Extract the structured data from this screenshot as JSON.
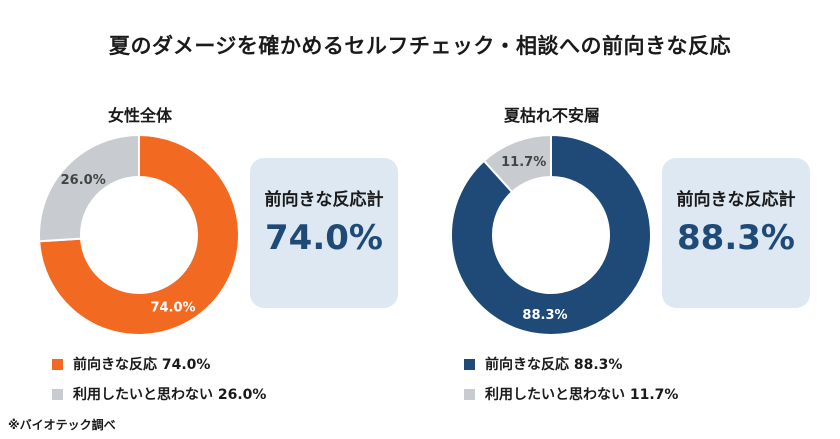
{
  "title": "夏のダメージを確かめるセルフチェック・相談への前向きな反応",
  "footnote": "※バイオテック調べ",
  "colors": {
    "orange": "#f26a21",
    "navy": "#1f4a78",
    "gray": "#c8ccd1",
    "box_bg": "#dde8f3"
  },
  "chart_data": [
    {
      "type": "pie",
      "variant": "donut",
      "title": "女性全体",
      "slices": [
        {
          "label": "前向きな反応",
          "value": 74.0,
          "display": "74.0%",
          "color": "#f26a21",
          "text_color": "#ffffff",
          "legend": "前向きな反応 74.0%"
        },
        {
          "label": "利用したいと思わない",
          "value": 26.0,
          "display": "26.0%",
          "color": "#c8ccd1",
          "text_color": "#444444",
          "legend": "利用したいと思わない 26.0%"
        }
      ],
      "summary": {
        "label": "前向きな反応計",
        "value": "74.0%"
      }
    },
    {
      "type": "pie",
      "variant": "donut",
      "title": "夏枯れ不安層",
      "slices": [
        {
          "label": "前向きな反応",
          "value": 88.3,
          "display": "88.3%",
          "color": "#1f4a78",
          "text_color": "#ffffff",
          "legend": "前向きな反応 88.3%"
        },
        {
          "label": "利用したいと思わない",
          "value": 11.7,
          "display": "11.7%",
          "color": "#c8ccd1",
          "text_color": "#444444",
          "legend": "利用したいと思わない 11.7%"
        }
      ],
      "summary": {
        "label": "前向きな反応計",
        "value": "88.3%"
      }
    }
  ]
}
